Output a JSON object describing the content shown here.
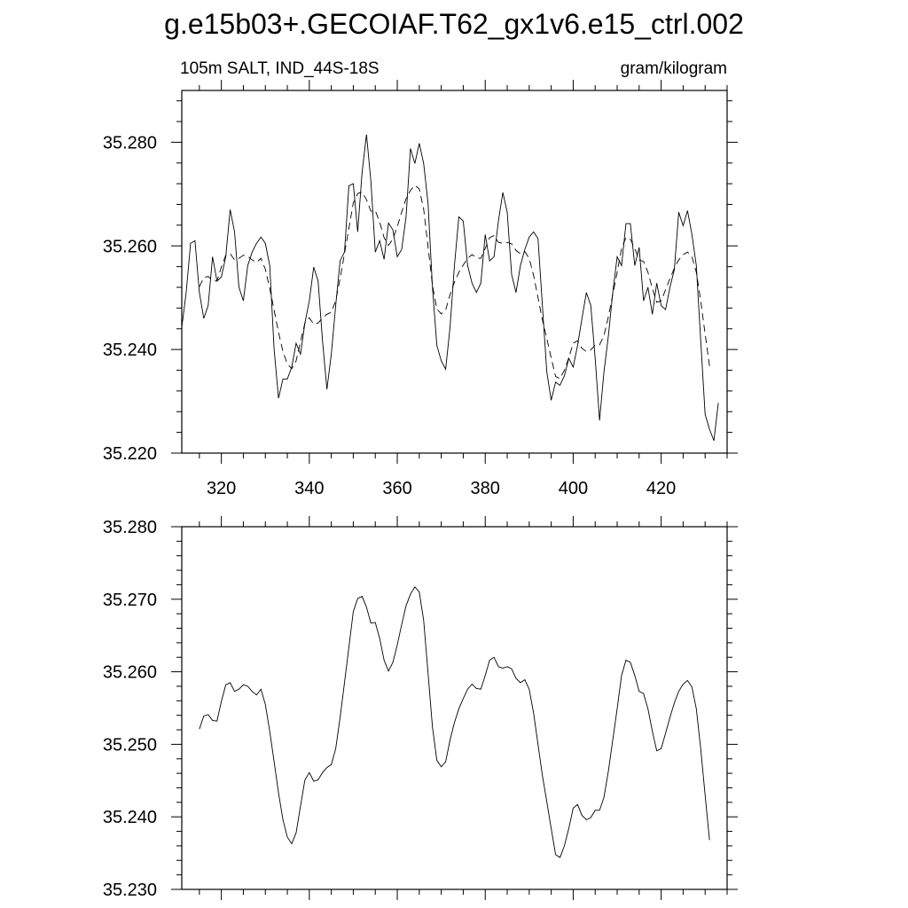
{
  "chart_data": [
    {
      "type": "line",
      "title": "g.e15b03+.GECOIAF.T62_gx1v6.e15_ctrl.002",
      "subtitle": "105m SALT, IND_44S-18S",
      "units_label": "gram/kilogram",
      "xlim": [
        311,
        435
      ],
      "xticks": [
        320,
        340,
        360,
        380,
        400,
        420
      ],
      "x_minor_divisions": 4,
      "ylim": [
        35.22,
        35.29
      ],
      "yticks": [
        {
          "value": 35.22,
          "label": "35.220"
        },
        {
          "value": 35.24,
          "label": "35.240"
        },
        {
          "value": 35.26,
          "label": "35.260"
        },
        {
          "value": 35.28,
          "label": "35.280"
        }
      ],
      "y_minor_divisions": 5,
      "xtick_labels": true,
      "series": [
        {
          "color": "#000000",
          "line_style": "solid",
          "x": [
            311,
            312,
            313,
            314,
            315,
            316,
            317,
            318,
            319,
            320,
            321,
            322,
            323,
            324,
            325,
            326,
            327,
            328,
            329,
            330,
            331,
            332,
            333,
            334,
            335,
            336,
            337,
            338,
            339,
            340,
            341,
            342,
            343,
            344,
            345,
            346,
            347,
            348,
            349,
            350,
            351,
            352,
            353,
            354,
            355,
            356,
            357,
            358,
            359,
            360,
            361,
            362,
            363,
            364,
            365,
            366,
            367,
            368,
            369,
            370,
            371,
            372,
            373,
            374,
            375,
            376,
            377,
            378,
            379,
            380,
            381,
            382,
            383,
            384,
            385,
            386,
            387,
            388,
            389,
            390,
            391,
            392,
            393,
            394,
            395,
            396,
            397,
            398,
            399,
            400,
            401,
            402,
            403,
            404,
            405,
            406,
            407,
            408,
            409,
            410,
            411,
            412,
            413,
            414,
            415,
            416,
            417,
            418,
            419,
            420,
            421,
            422,
            423,
            424,
            425,
            426,
            427,
            428,
            429,
            430,
            431,
            432,
            433
          ],
          "values": [
            35.2443,
            35.251,
            35.2605,
            35.261,
            35.251,
            35.246,
            35.2485,
            35.2579,
            35.2532,
            35.254,
            35.2579,
            35.267,
            35.2627,
            35.252,
            35.2494,
            35.2562,
            35.2588,
            35.2605,
            35.2617,
            35.2605,
            35.2562,
            35.24,
            35.2306,
            35.2343,
            35.2343,
            35.2366,
            35.2412,
            35.2391,
            35.2451,
            35.2494,
            35.2559,
            35.2532,
            35.2417,
            35.2323,
            35.2391,
            35.2485,
            35.2571,
            35.2588,
            35.2716,
            35.272,
            35.2627,
            35.2742,
            35.2815,
            35.2725,
            35.2588,
            35.261,
            35.2574,
            35.2644,
            35.2631,
            35.2579,
            35.2593,
            35.2656,
            35.2788,
            35.2759,
            35.2798,
            35.2759,
            35.2682,
            35.252,
            35.2408,
            35.2378,
            35.2362,
            35.2443,
            35.2562,
            35.2656,
            35.2648,
            35.2562,
            35.2528,
            35.251,
            35.2528,
            35.2622,
            35.2571,
            35.2579,
            35.2648,
            35.2703,
            35.2665,
            35.2545,
            35.251,
            35.2562,
            35.2593,
            35.2617,
            35.2627,
            35.2614,
            35.2485,
            35.2357,
            35.2302,
            35.2337,
            35.2331,
            35.2349,
            35.2383,
            35.2366,
            35.2408,
            35.246,
            35.251,
            35.2485,
            35.2383,
            35.2263,
            35.2357,
            35.2426,
            35.251,
            35.2579,
            35.2562,
            35.2643,
            35.2643,
            35.2562,
            35.2597,
            35.2494,
            35.252,
            35.2468,
            35.2528,
            35.2485,
            35.2477,
            35.252,
            35.2554,
            35.2665,
            35.2639,
            35.2668,
            35.2622,
            35.2562,
            35.2417,
            35.2275,
            35.2246,
            35.2224,
            35.2297
          ]
        },
        {
          "color": "#000000",
          "line_style": "dashed",
          "x": [
            315,
            316,
            317,
            318,
            319,
            320,
            321,
            322,
            323,
            324,
            325,
            326,
            327,
            328,
            329,
            330,
            331,
            332,
            333,
            334,
            335,
            336,
            337,
            338,
            339,
            340,
            341,
            342,
            343,
            344,
            345,
            346,
            347,
            348,
            349,
            350,
            351,
            352,
            353,
            354,
            355,
            356,
            357,
            358,
            359,
            360,
            361,
            362,
            363,
            364,
            365,
            366,
            367,
            368,
            369,
            370,
            371,
            372,
            373,
            374,
            375,
            376,
            377,
            378,
            379,
            380,
            381,
            382,
            383,
            384,
            385,
            386,
            387,
            388,
            389,
            390,
            391,
            392,
            393,
            394,
            395,
            396,
            397,
            398,
            399,
            400,
            401,
            402,
            403,
            404,
            405,
            406,
            407,
            408,
            409,
            410,
            411,
            412,
            413,
            414,
            415,
            416,
            417,
            418,
            419,
            420,
            421,
            422,
            423,
            424,
            425,
            426,
            427,
            428,
            429,
            430,
            431
          ],
          "values": [
            35.2521,
            35.2539,
            35.2541,
            35.2533,
            35.2532,
            35.2559,
            35.2582,
            35.2585,
            35.2573,
            35.2576,
            35.2582,
            35.258,
            35.2573,
            35.2568,
            35.2576,
            35.2555,
            35.2518,
            35.2476,
            35.2433,
            35.2396,
            35.2372,
            35.2363,
            35.2378,
            35.2415,
            35.2451,
            35.2461,
            35.2449,
            35.2451,
            35.2461,
            35.2468,
            35.2472,
            35.2494,
            35.2537,
            35.2585,
            35.2634,
            35.2683,
            35.2701,
            35.2704,
            35.2689,
            35.2667,
            35.2668,
            35.2646,
            35.2616,
            35.2601,
            35.2613,
            35.2637,
            35.2665,
            35.2691,
            35.2707,
            35.2717,
            35.271,
            35.2671,
            35.2598,
            35.2524,
            35.2478,
            35.2469,
            35.2476,
            35.2506,
            35.253,
            35.2549,
            35.2563,
            35.2576,
            35.2583,
            35.2577,
            35.2576,
            35.2595,
            35.2616,
            35.262,
            35.2607,
            35.2605,
            35.2607,
            35.2604,
            35.2591,
            35.2585,
            35.2589,
            35.2576,
            35.2543,
            35.25,
            35.2457,
            35.2421,
            35.2384,
            35.2348,
            35.2344,
            35.236,
            35.2384,
            35.2412,
            35.2417,
            35.2402,
            35.2396,
            35.2399,
            35.2409,
            35.2409,
            35.2427,
            35.2463,
            35.2506,
            35.2549,
            35.2595,
            35.2616,
            35.2613,
            35.2595,
            35.2573,
            35.257,
            35.2549,
            35.2518,
            35.2491,
            35.2494,
            35.2515,
            35.2537,
            35.2557,
            35.2573,
            35.2583,
            35.2588,
            35.2579,
            35.2549,
            35.2494,
            35.243,
            35.2368
          ]
        }
      ]
    },
    {
      "type": "line",
      "xlim": [
        311,
        435
      ],
      "xticks": [
        320,
        340,
        360,
        380,
        400,
        420
      ],
      "x_minor_divisions": 4,
      "ylim": [
        35.23,
        35.28
      ],
      "yticks": [
        {
          "value": 35.23,
          "label": "35.230"
        },
        {
          "value": 35.24,
          "label": "35.240"
        },
        {
          "value": 35.25,
          "label": "35.250"
        },
        {
          "value": 35.26,
          "label": "35.260"
        },
        {
          "value": 35.27,
          "label": "35.270"
        },
        {
          "value": 35.28,
          "label": "35.280"
        }
      ],
      "y_minor_divisions": 5,
      "xtick_labels": false,
      "series": [
        {
          "color": "#000000",
          "line_style": "solid",
          "x": [
            315,
            316,
            317,
            318,
            319,
            320,
            321,
            322,
            323,
            324,
            325,
            326,
            327,
            328,
            329,
            330,
            331,
            332,
            333,
            334,
            335,
            336,
            337,
            338,
            339,
            340,
            341,
            342,
            343,
            344,
            345,
            346,
            347,
            348,
            349,
            350,
            351,
            352,
            353,
            354,
            355,
            356,
            357,
            358,
            359,
            360,
            361,
            362,
            363,
            364,
            365,
            366,
            367,
            368,
            369,
            370,
            371,
            372,
            373,
            374,
            375,
            376,
            377,
            378,
            379,
            380,
            381,
            382,
            383,
            384,
            385,
            386,
            387,
            388,
            389,
            390,
            391,
            392,
            393,
            394,
            395,
            396,
            397,
            398,
            399,
            400,
            401,
            402,
            403,
            404,
            405,
            406,
            407,
            408,
            409,
            410,
            411,
            412,
            413,
            414,
            415,
            416,
            417,
            418,
            419,
            420,
            421,
            422,
            423,
            424,
            425,
            426,
            427,
            428,
            429,
            430,
            431
          ],
          "values": [
            35.2521,
            35.2539,
            35.2541,
            35.2533,
            35.2532,
            35.2559,
            35.2582,
            35.2585,
            35.2573,
            35.2576,
            35.2582,
            35.258,
            35.2573,
            35.2568,
            35.2576,
            35.2555,
            35.2518,
            35.2476,
            35.2433,
            35.2396,
            35.2372,
            35.2363,
            35.2378,
            35.2415,
            35.2451,
            35.2461,
            35.2449,
            35.2451,
            35.2461,
            35.2468,
            35.2472,
            35.2494,
            35.2537,
            35.2585,
            35.2634,
            35.2683,
            35.2701,
            35.2704,
            35.2689,
            35.2667,
            35.2668,
            35.2646,
            35.2616,
            35.2601,
            35.2613,
            35.2637,
            35.2665,
            35.2691,
            35.2707,
            35.2717,
            35.271,
            35.2671,
            35.2598,
            35.2524,
            35.2478,
            35.2469,
            35.2476,
            35.2506,
            35.253,
            35.2549,
            35.2563,
            35.2576,
            35.2583,
            35.2577,
            35.2576,
            35.2595,
            35.2616,
            35.262,
            35.2607,
            35.2605,
            35.2607,
            35.2604,
            35.2591,
            35.2585,
            35.2589,
            35.2576,
            35.2543,
            35.25,
            35.2457,
            35.2421,
            35.2384,
            35.2348,
            35.2344,
            35.236,
            35.2384,
            35.2412,
            35.2417,
            35.2402,
            35.2396,
            35.2399,
            35.2409,
            35.2409,
            35.2427,
            35.2463,
            35.2506,
            35.2549,
            35.2595,
            35.2616,
            35.2613,
            35.2595,
            35.2573,
            35.257,
            35.2549,
            35.2518,
            35.2491,
            35.2494,
            35.2515,
            35.2537,
            35.2557,
            35.2573,
            35.2583,
            35.2588,
            35.2579,
            35.2549,
            35.2494,
            35.243,
            35.2368
          ]
        }
      ]
    }
  ]
}
